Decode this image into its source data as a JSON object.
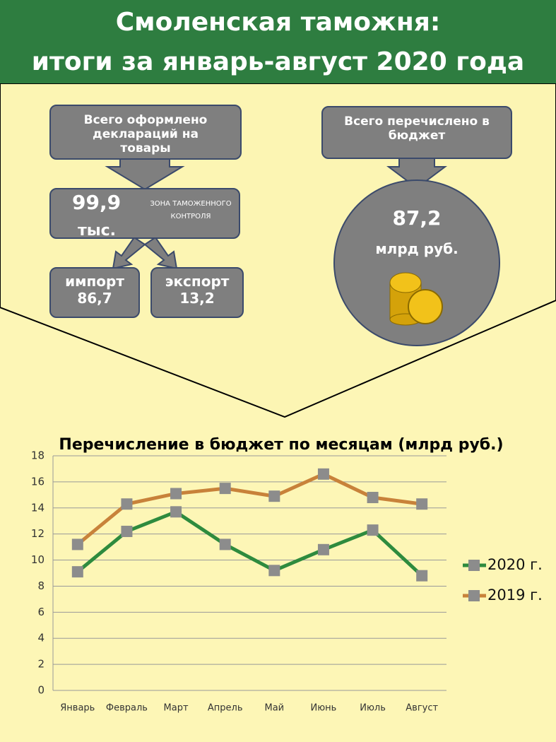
{
  "header": {
    "title_lines": [
      "Смоленская таможня:",
      "итоги за январь-август 2020 года"
    ]
  },
  "declarations": {
    "label": "Всего оформлено деклараций на товары",
    "value": "99,9",
    "unit": "тыс.",
    "sign": "ЗОНА ТАМОЖЕННОГО КОНТРОЛЯ",
    "import": {
      "label": "импорт",
      "value": "86,7"
    },
    "export": {
      "label": "экспорт",
      "value": "13,2"
    }
  },
  "budget": {
    "label": "Всего перечислено в бюджет",
    "value": "87,2",
    "unit": "млрд руб."
  },
  "chart_data": {
    "type": "line",
    "title": "Перечисление в бюджет по месяцам (млрд руб.)",
    "categories": [
      "Январь",
      "Февраль",
      "Март",
      "Апрель",
      "Май",
      "Июнь",
      "Июль",
      "Август"
    ],
    "series": [
      {
        "name": "2020 г.",
        "color": "#2e8b3e",
        "values": [
          9.1,
          12.2,
          13.7,
          11.2,
          9.2,
          10.8,
          12.3,
          8.8
        ]
      },
      {
        "name": "2019 г.",
        "color": "#c8823a",
        "values": [
          11.2,
          14.3,
          15.1,
          15.5,
          14.9,
          16.6,
          14.8,
          14.3
        ]
      }
    ],
    "marker_color": "#8c8c8c",
    "ylim": [
      0,
      18
    ],
    "yticks": [
      0,
      2,
      4,
      6,
      8,
      10,
      12,
      14,
      16,
      18
    ],
    "grid": true,
    "legend": "right"
  }
}
